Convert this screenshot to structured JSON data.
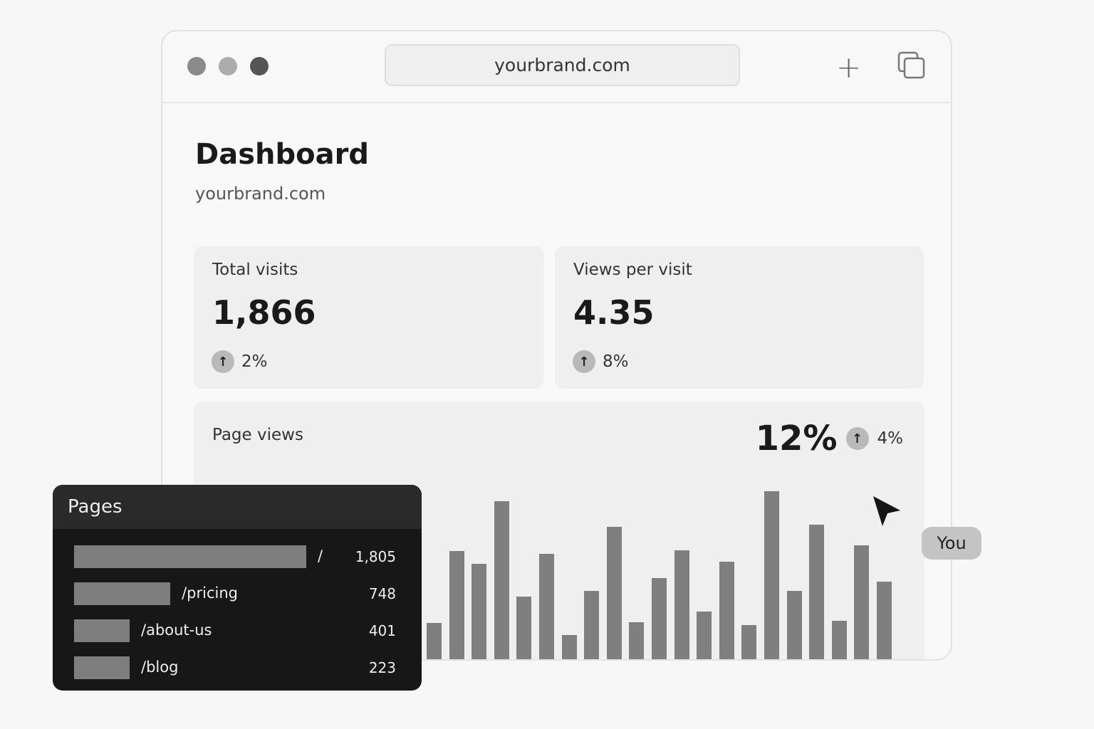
{
  "browser": {
    "url": "yourbrand.com",
    "dot_colors": [
      "#8a8a8a",
      "#ababab",
      "#555555"
    ],
    "new_tab_icon": "plus-icon",
    "tabs_icon": "copy-icon"
  },
  "header": {
    "title": "Dashboard",
    "subtitle": "yourbrand.com"
  },
  "cards": [
    {
      "label": "Total visits",
      "value": "1,866",
      "delta": "2%",
      "direction": "up"
    },
    {
      "label": "Views per visit",
      "value": "4.35",
      "delta": "8%",
      "direction": "up"
    }
  ],
  "page_views": {
    "label": "Page views",
    "value": "12%",
    "delta": "4%",
    "direction": "up"
  },
  "chart_data": {
    "type": "bar",
    "values": [
      54,
      155,
      137,
      225,
      91,
      151,
      37,
      99,
      189,
      55,
      117,
      156,
      70,
      140,
      51,
      239,
      99,
      192,
      57,
      163,
      112
    ],
    "axes": "none",
    "grid": false,
    "bar_color": "#7f7f7f"
  },
  "pages": {
    "title": "Pages",
    "rows": [
      {
        "path": "/",
        "views": "1,805",
        "value": 1805
      },
      {
        "path": "/pricing",
        "views": "748",
        "value": 748
      },
      {
        "path": "/about-us",
        "views": "401",
        "value": 401
      },
      {
        "path": "/blog",
        "views": "223",
        "value": 223
      }
    ]
  },
  "cursor": {
    "label": "You"
  }
}
